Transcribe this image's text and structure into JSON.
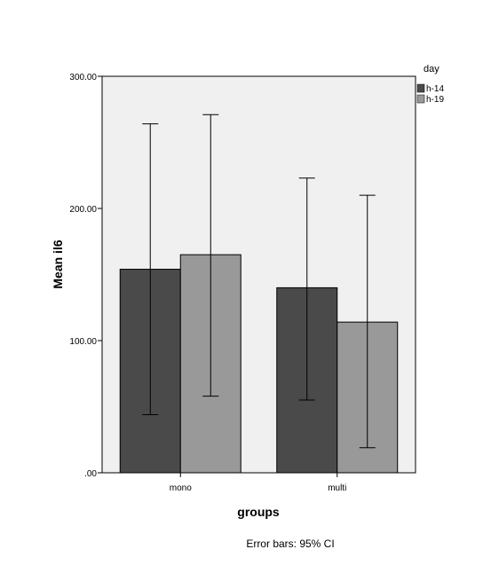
{
  "chart_data": {
    "type": "bar",
    "categories": [
      "mono",
      "multi"
    ],
    "series": [
      {
        "name": "h-14",
        "color": "#4a4a4a",
        "values": [
          154,
          140
        ],
        "ci_low": [
          44,
          55
        ],
        "ci_high": [
          264,
          223
        ]
      },
      {
        "name": "h-19",
        "color": "#999999",
        "values": [
          165,
          114
        ],
        "ci_low": [
          58,
          19
        ],
        "ci_high": [
          271,
          210
        ]
      }
    ],
    "xlabel": "groups",
    "ylabel": "Mean il6",
    "ylim": [
      0,
      300
    ],
    "yticks": [
      0,
      100,
      200,
      300
    ],
    "ytick_labels": [
      ".00",
      "100.00",
      "200.00",
      "300.00"
    ],
    "legend_title": "day",
    "legend_position": "top-right outside",
    "grid": false,
    "plot_background": "#f0f0f0",
    "error_bar_note": "Error bars: 95% CI"
  }
}
